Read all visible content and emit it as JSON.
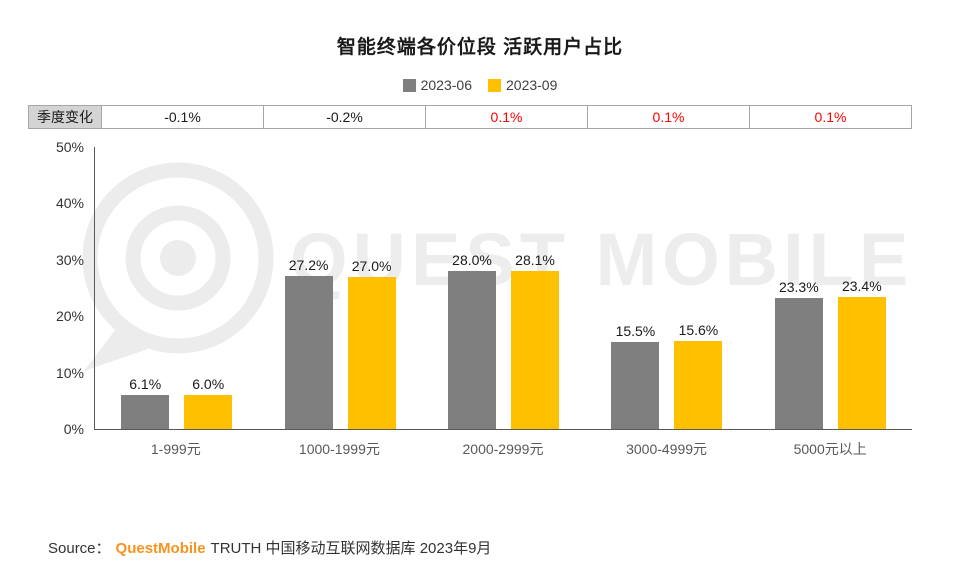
{
  "title": "智能终端各价位段 活跃用户占比",
  "legend": [
    {
      "label": "2023-06",
      "color": "#7f7f7f"
    },
    {
      "label": "2023-09",
      "color": "#ffc000"
    }
  ],
  "quarter_change": {
    "label": "季度变化",
    "values": [
      {
        "text": "-0.1%",
        "color": "#1a1a1a"
      },
      {
        "text": "-0.2%",
        "color": "#1a1a1a"
      },
      {
        "text": "0.1%",
        "color": "#ff0000"
      },
      {
        "text": "0.1%",
        "color": "#ff0000"
      },
      {
        "text": "0.1%",
        "color": "#ff0000"
      }
    ]
  },
  "chart_data": {
    "type": "bar",
    "title": "智能终端各价位段 活跃用户占比",
    "categories": [
      "1-999元",
      "1000-1999元",
      "2000-2999元",
      "3000-4999元",
      "5000元以上"
    ],
    "series": [
      {
        "name": "2023-06",
        "color": "#7f7f7f",
        "values": [
          6.1,
          27.2,
          28.0,
          15.5,
          23.3
        ]
      },
      {
        "name": "2023-09",
        "color": "#ffc000",
        "values": [
          6.0,
          27.0,
          28.1,
          15.6,
          23.4
        ]
      }
    ],
    "xlabel": "",
    "ylabel": "",
    "ylim": [
      0,
      50
    ],
    "yticks": [
      "0%",
      "10%",
      "20%",
      "30%",
      "40%",
      "50%"
    ],
    "grid": false,
    "legend_position": "top",
    "data_labels": true,
    "data_label_format": "one_decimal_percent"
  },
  "watermark": "QUEST MOBILE",
  "source": {
    "prefix": "Source：",
    "brand": "QuestMobile",
    "rest": "TRUTH 中国移动互联网数据库 2023年9月"
  }
}
